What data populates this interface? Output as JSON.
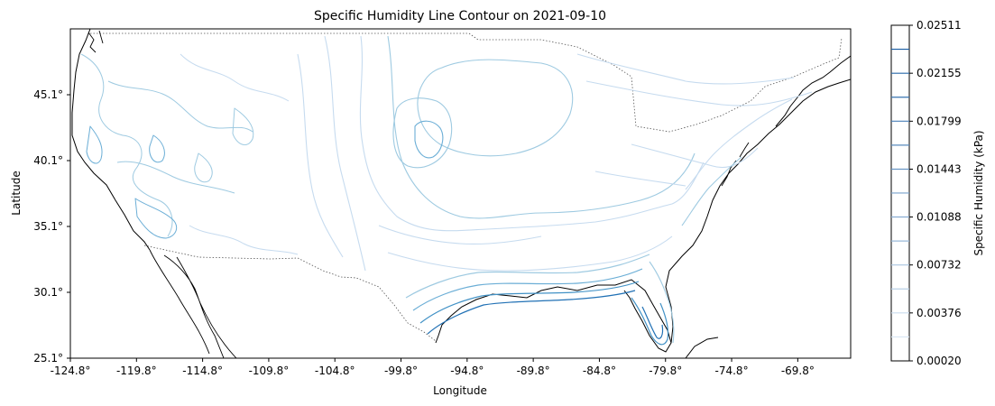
{
  "chart_data": {
    "type": "contour",
    "title": "Specific Humidity Line Contour on 2021-09-10",
    "xlabel": "Longitude",
    "ylabel": "Latitude",
    "xlim": [
      -124.8,
      -65.8
    ],
    "ylim": [
      25.1,
      50.1
    ],
    "x_ticks": [
      "-124.8°",
      "-119.8°",
      "-114.8°",
      "-109.8°",
      "-104.8°",
      "-99.8°",
      "-94.8°",
      "-89.8°",
      "-84.8°",
      "-79.8°",
      "-74.8°",
      "-69.8°"
    ],
    "y_ticks": [
      "25.1°",
      "30.1°",
      "35.1°",
      "40.1°",
      "45.1°"
    ],
    "colorbar": {
      "label": "Specific Humidity (kPa)",
      "min": 0.0002,
      "max": 0.02511,
      "tick_labels": [
        "0.00020",
        "0.00376",
        "0.00732",
        "0.01088",
        "0.01443",
        "0.01799",
        "0.02155",
        "0.02511"
      ],
      "levels": [
        0.0002,
        0.00198,
        0.00376,
        0.00554,
        0.00732,
        0.0091,
        0.01088,
        0.01266,
        0.01443,
        0.01621,
        0.01799,
        0.01977,
        0.02155,
        0.02333,
        0.02511
      ],
      "colormap": "Blues",
      "low_color": "#eaf2fb",
      "high_color": "#08519c"
    },
    "grid": false
  }
}
